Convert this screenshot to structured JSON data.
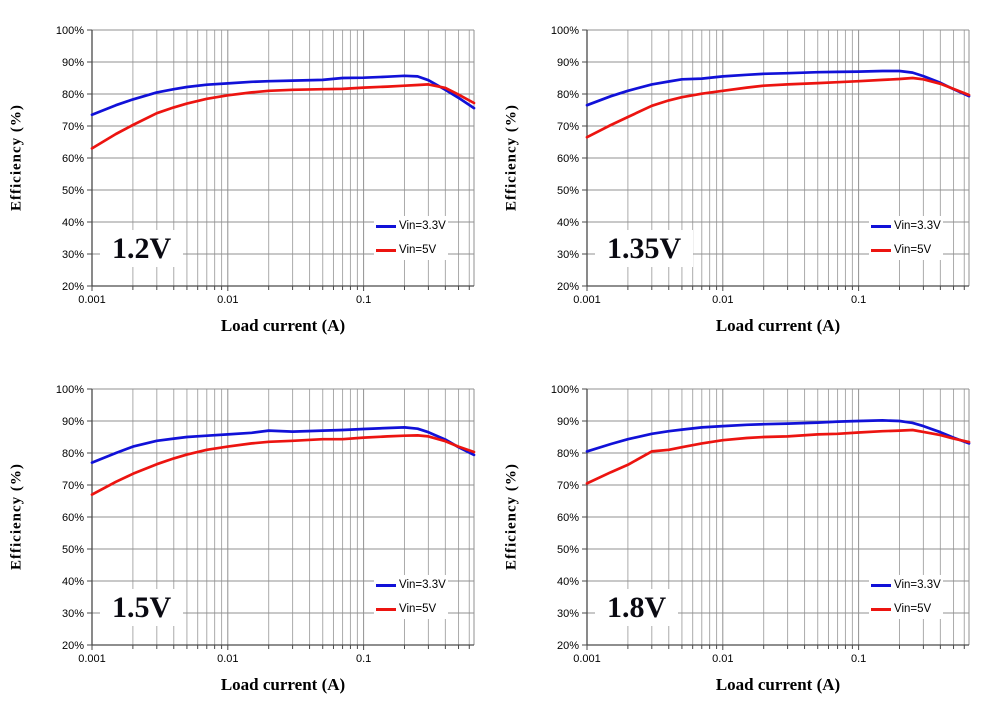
{
  "page": {
    "background": "#ffffff"
  },
  "colors": {
    "series_blue": "#1111d8",
    "series_red": "#ec1410",
    "grid_major": "#909090",
    "grid_minor": "#ababab",
    "axis": "#4a4a4a",
    "tick_text": "#000000"
  },
  "chart_data": [
    {
      "type": "line",
      "panel_label": "1.2V",
      "xlabel": "Load current (A)",
      "ylabel": "Efficiency (%)",
      "x_scale": "log",
      "xlim": [
        0.001,
        0.65
      ],
      "ylim": [
        20,
        100
      ],
      "grid": true,
      "legend_position": "right-center",
      "y_tick_labels": [
        "100%",
        "90%",
        "80%",
        "70%",
        "60%",
        "50%",
        "40%",
        "30%",
        "20%"
      ],
      "x_major_ticks": [
        0.001,
        0.01,
        0.1
      ],
      "x_tick_labels": [
        "0.001",
        "0.01",
        "0.1"
      ],
      "x": [
        0.001,
        0.0015,
        0.002,
        0.003,
        0.004,
        0.005,
        0.007,
        0.01,
        0.015,
        0.02,
        0.03,
        0.05,
        0.07,
        0.1,
        0.15,
        0.2,
        0.25,
        0.3,
        0.4,
        0.5,
        0.65
      ],
      "series": [
        {
          "name": "Vin=3.3V",
          "color": "#1111d8",
          "values": [
            73.5,
            76.5,
            78.3,
            80.5,
            81.5,
            82.2,
            82.9,
            83.3,
            83.8,
            84.0,
            84.2,
            84.4,
            85.0,
            85.1,
            85.4,
            85.7,
            85.5,
            84.3,
            81.3,
            78.8,
            75.6
          ]
        },
        {
          "name": "Vin=5V",
          "color": "#ec1410",
          "values": [
            63.0,
            67.5,
            70.3,
            74.0,
            75.8,
            77.0,
            78.5,
            79.6,
            80.5,
            81.0,
            81.3,
            81.5,
            81.6,
            82.0,
            82.3,
            82.6,
            82.8,
            83.0,
            81.9,
            79.8,
            77.2
          ]
        }
      ]
    },
    {
      "type": "line",
      "panel_label": "1.35V",
      "xlabel": "Load current (A)",
      "ylabel": "Efficiency (%)",
      "x_scale": "log",
      "xlim": [
        0.001,
        0.65
      ],
      "ylim": [
        20,
        100
      ],
      "grid": true,
      "legend_position": "right-center",
      "y_tick_labels": [
        "100%",
        "90%",
        "80%",
        "70%",
        "60%",
        "50%",
        "40%",
        "30%",
        "20%"
      ],
      "x_major_ticks": [
        0.001,
        0.01,
        0.1
      ],
      "x_tick_labels": [
        "0.001",
        "0.01",
        "0.1"
      ],
      "x": [
        0.001,
        0.0015,
        0.002,
        0.003,
        0.004,
        0.005,
        0.007,
        0.01,
        0.015,
        0.02,
        0.03,
        0.05,
        0.07,
        0.1,
        0.15,
        0.2,
        0.25,
        0.3,
        0.4,
        0.5,
        0.65
      ],
      "series": [
        {
          "name": "Vin=3.3V",
          "color": "#1111d8",
          "values": [
            76.5,
            79.3,
            81.0,
            83.0,
            83.9,
            84.6,
            84.8,
            85.5,
            86.0,
            86.3,
            86.5,
            86.8,
            86.9,
            87.0,
            87.2,
            87.2,
            86.7,
            85.6,
            83.5,
            81.5,
            79.3
          ]
        },
        {
          "name": "Vin=5V",
          "color": "#ec1410",
          "values": [
            66.5,
            70.3,
            72.8,
            76.3,
            78.0,
            79.0,
            80.1,
            81.0,
            82.0,
            82.6,
            83.0,
            83.4,
            83.7,
            84.0,
            84.4,
            84.7,
            85.0,
            84.6,
            83.2,
            81.6,
            79.7
          ]
        }
      ]
    },
    {
      "type": "line",
      "panel_label": "1.5V",
      "xlabel": "Load current (A)",
      "ylabel": "Efficiency (%)",
      "x_scale": "log",
      "xlim": [
        0.001,
        0.65
      ],
      "ylim": [
        20,
        100
      ],
      "grid": true,
      "legend_position": "right-center",
      "y_tick_labels": [
        "100%",
        "90%",
        "80%",
        "70%",
        "60%",
        "50%",
        "40%",
        "30%",
        "20%"
      ],
      "x_major_ticks": [
        0.001,
        0.01,
        0.1
      ],
      "x_tick_labels": [
        "0.001",
        "0.01",
        "0.1"
      ],
      "x": [
        0.001,
        0.0015,
        0.002,
        0.003,
        0.004,
        0.005,
        0.007,
        0.01,
        0.015,
        0.02,
        0.03,
        0.05,
        0.07,
        0.1,
        0.15,
        0.2,
        0.25,
        0.3,
        0.4,
        0.5,
        0.65
      ],
      "series": [
        {
          "name": "Vin=3.3V",
          "color": "#1111d8",
          "values": [
            77.0,
            80.0,
            82.0,
            83.8,
            84.5,
            85.0,
            85.4,
            85.8,
            86.3,
            87.0,
            86.7,
            87.0,
            87.2,
            87.5,
            87.8,
            88.0,
            87.6,
            86.5,
            84.2,
            81.8,
            79.4
          ]
        },
        {
          "name": "Vin=5V",
          "color": "#ec1410",
          "values": [
            67.0,
            71.0,
            73.5,
            76.5,
            78.3,
            79.5,
            81.0,
            82.0,
            83.0,
            83.5,
            83.8,
            84.3,
            84.3,
            84.8,
            85.2,
            85.4,
            85.5,
            85.2,
            83.7,
            82.0,
            80.3
          ]
        }
      ]
    },
    {
      "type": "line",
      "panel_label": "1.8V",
      "xlabel": "Load current (A)",
      "ylabel": "Efficiency (%)",
      "x_scale": "log",
      "xlim": [
        0.001,
        0.65
      ],
      "ylim": [
        20,
        100
      ],
      "grid": true,
      "legend_position": "right-center",
      "y_tick_labels": [
        "100%",
        "90%",
        "80%",
        "70%",
        "60%",
        "50%",
        "40%",
        "30%",
        "20%"
      ],
      "x_major_ticks": [
        0.001,
        0.01,
        0.1
      ],
      "x_tick_labels": [
        "0.001",
        "0.01",
        "0.1"
      ],
      "x": [
        0.001,
        0.0015,
        0.002,
        0.003,
        0.004,
        0.005,
        0.007,
        0.01,
        0.015,
        0.02,
        0.03,
        0.05,
        0.07,
        0.1,
        0.15,
        0.2,
        0.25,
        0.3,
        0.4,
        0.5,
        0.65
      ],
      "series": [
        {
          "name": "Vin=3.3V",
          "color": "#1111d8",
          "values": [
            80.5,
            82.8,
            84.3,
            86.0,
            86.8,
            87.3,
            88.0,
            88.4,
            88.8,
            89.0,
            89.2,
            89.5,
            89.8,
            90.0,
            90.2,
            90.0,
            89.4,
            88.4,
            86.5,
            84.8,
            83.0
          ]
        },
        {
          "name": "Vin=5V",
          "color": "#ec1410",
          "values": [
            70.5,
            74.0,
            76.3,
            80.5,
            81.0,
            81.8,
            83.0,
            84.0,
            84.7,
            85.0,
            85.2,
            85.8,
            86.0,
            86.4,
            86.8,
            87.0,
            87.2,
            86.6,
            85.6,
            84.5,
            83.4
          ]
        }
      ]
    }
  ]
}
